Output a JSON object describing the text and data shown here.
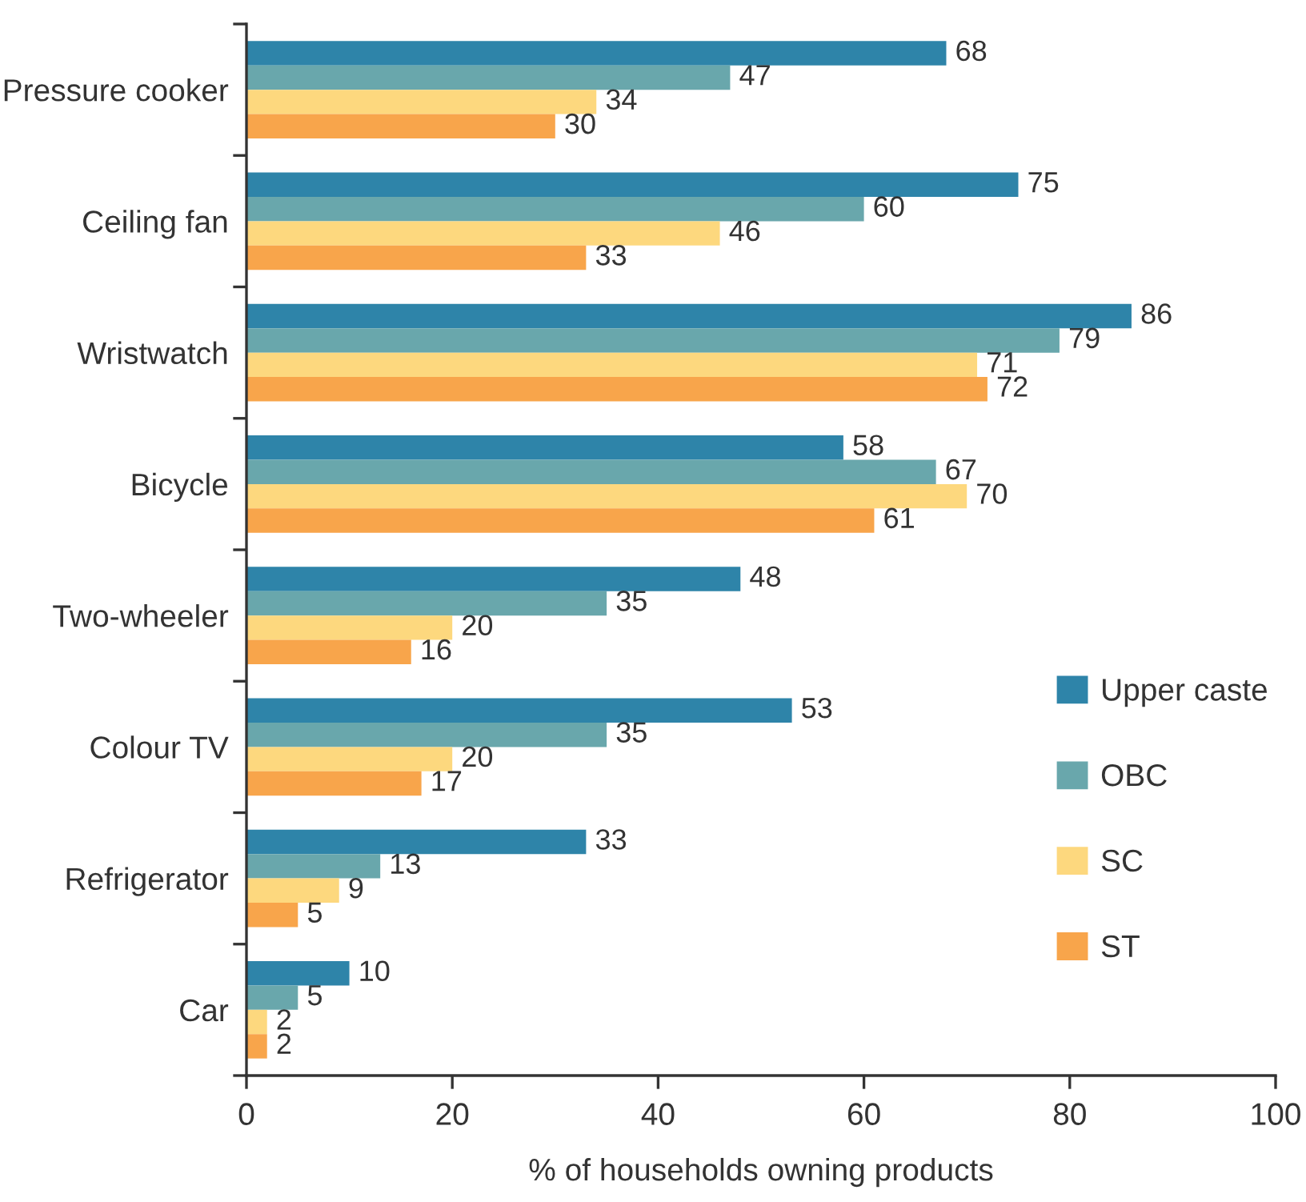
{
  "chart_data": {
    "type": "bar",
    "orientation": "horizontal",
    "xlabel": "% of households owning products",
    "categories": [
      "Pressure cooker",
      "Ceiling fan",
      "Wristwatch",
      "Bicycle",
      "Two-wheeler",
      "Colour TV",
      "Refrigerator",
      "Car"
    ],
    "series": [
      {
        "name": "Upper caste",
        "color": "#2e84a9",
        "values": [
          68,
          75,
          86,
          58,
          48,
          53,
          33,
          10
        ]
      },
      {
        "name": "OBC",
        "color": "#69a7ac",
        "values": [
          47,
          60,
          79,
          67,
          35,
          35,
          13,
          5
        ]
      },
      {
        "name": "SC",
        "color": "#fdd87e",
        "values": [
          34,
          46,
          71,
          70,
          20,
          20,
          9,
          2
        ]
      },
      {
        "name": "ST",
        "color": "#f8a54b",
        "values": [
          30,
          33,
          72,
          61,
          16,
          17,
          5,
          2
        ]
      }
    ],
    "xlim": [
      0,
      100
    ],
    "xticks": [
      0,
      20,
      40,
      60,
      80,
      100
    ],
    "data_labels": true,
    "grid": false,
    "legend": "lower right"
  }
}
